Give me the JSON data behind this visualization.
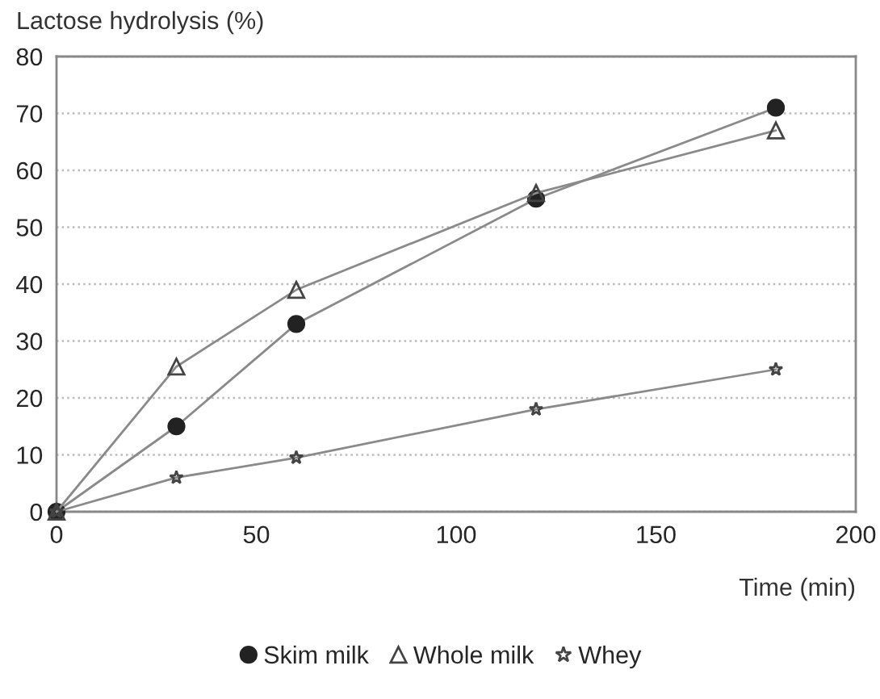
{
  "chart_data": {
    "type": "line",
    "xlabel": "Time (min)",
    "ylabel": "Lactose hydrolysis (%)",
    "x": [
      0,
      30,
      60,
      120,
      180
    ],
    "series": [
      {
        "name": "Skim milk",
        "color": "#222222",
        "marker": "circle",
        "values": [
          0,
          15,
          33,
          55,
          71
        ]
      },
      {
        "name": "Whole milk",
        "color": "#444444",
        "marker": "triangle",
        "values": [
          0,
          25.5,
          39,
          56,
          67
        ]
      },
      {
        "name": "Whey",
        "color": "#444444",
        "marker": "star",
        "values": [
          0,
          6,
          9.5,
          18,
          25
        ]
      }
    ],
    "xlim": [
      0,
      200
    ],
    "xticks": [
      0,
      50,
      100,
      150,
      200
    ],
    "ylim": [
      0,
      80
    ],
    "yticks": [
      0,
      10,
      20,
      30,
      40,
      50,
      60,
      70,
      80
    ],
    "grid": "y",
    "legend": "bottom",
    "line_style": "solid"
  }
}
